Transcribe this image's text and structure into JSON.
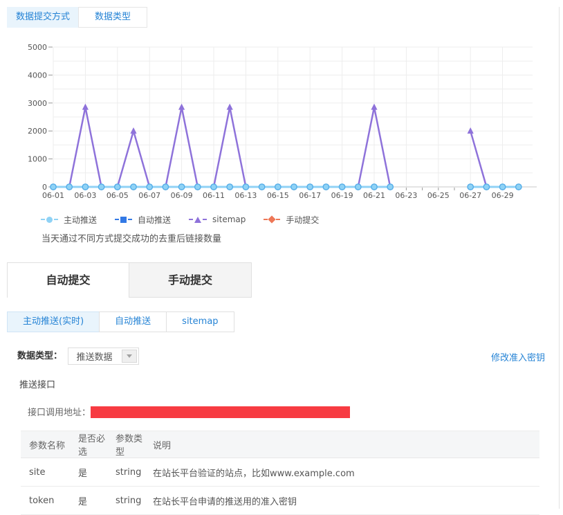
{
  "top_tabs": [
    {
      "label": "数据提交方式",
      "active": true
    },
    {
      "label": "数据类型",
      "active": false
    }
  ],
  "chart": {
    "caption": "当天通过不同方式提交成功的去重后链接数量"
  },
  "chart_data": {
    "type": "line",
    "x": [
      "06-01",
      "06-02",
      "06-03",
      "06-04",
      "06-05",
      "06-06",
      "06-07",
      "06-08",
      "06-09",
      "06-10",
      "06-11",
      "06-12",
      "06-13",
      "06-14",
      "06-15",
      "06-16",
      "06-17",
      "06-18",
      "06-19",
      "06-20",
      "06-21",
      "06-22",
      "06-23",
      "06-24",
      "06-25",
      "06-26",
      "06-27",
      "06-28",
      "06-29",
      "06-30"
    ],
    "ylim": [
      0,
      5000
    ],
    "ytick_interval": 1000,
    "grid_interval": 500,
    "x_label_every": 2,
    "grid": true,
    "legend_position": "bottom-left",
    "series": [
      {
        "name": "主动推送",
        "color": "#8FD2F5",
        "marker": "circle",
        "marker_fill": "#8FD2F5",
        "marker_stroke": "#54ADE8",
        "values": [
          0,
          0,
          0,
          0,
          0,
          0,
          0,
          0,
          0,
          0,
          0,
          0,
          0,
          0,
          0,
          0,
          0,
          0,
          0,
          0,
          0,
          0,
          null,
          null,
          null,
          null,
          0,
          0,
          0,
          0
        ]
      },
      {
        "name": "自动推送",
        "color": "#3379E5",
        "marker": "square",
        "marker_fill": "#3379E5",
        "marker_stroke": "#2a6cd4",
        "values": [
          0,
          0,
          0,
          0,
          0,
          0,
          0,
          0,
          0,
          0,
          0,
          0,
          0,
          0,
          0,
          0,
          0,
          0,
          0,
          0,
          0,
          0,
          null,
          null,
          null,
          null,
          0,
          0,
          0,
          0
        ]
      },
      {
        "name": "sitemap",
        "color": "#8E72DA",
        "marker": "triangle",
        "marker_fill": "#8E72DA",
        "marker_stroke": "#8E72DA",
        "values": [
          0,
          0,
          2850,
          0,
          0,
          2000,
          0,
          0,
          2850,
          0,
          0,
          2850,
          0,
          0,
          0,
          0,
          0,
          0,
          0,
          0,
          2850,
          0,
          null,
          null,
          null,
          null,
          2000,
          0,
          0,
          0
        ]
      },
      {
        "name": "手动提交",
        "color": "#EE7757",
        "marker": "diamond",
        "marker_fill": "#EE7757",
        "marker_stroke": "#EE7757",
        "values": [
          null,
          null,
          null,
          null,
          null,
          null,
          null,
          null,
          null,
          null,
          null,
          null,
          null,
          null,
          null,
          null,
          null,
          null,
          null,
          null,
          null,
          null,
          null,
          null,
          null,
          null,
          null,
          null,
          null,
          null
        ]
      }
    ]
  },
  "main_tabs": [
    {
      "label": "自动提交",
      "active": true
    },
    {
      "label": "手动提交",
      "active": false
    }
  ],
  "sub_tabs": [
    {
      "label": "主动推送(实时)",
      "active": true
    },
    {
      "label": "自动推送",
      "active": false
    },
    {
      "label": "sitemap",
      "active": false
    }
  ],
  "controls": {
    "data_type_label": "数据类型：",
    "data_type_value": "推送数据",
    "modify_key_link": "修改准入密钥"
  },
  "api": {
    "section_label": "推送接口",
    "address_label": "接口调用地址："
  },
  "table": {
    "headers": [
      "参数名称",
      "是否必选",
      "参数类型",
      "说明"
    ],
    "rows": [
      [
        "site",
        "是",
        "string",
        "在站长平台验证的站点，比如www.example.com"
      ],
      [
        "token",
        "是",
        "string",
        "在站长平台申请的推送用的准入密钥"
      ]
    ]
  },
  "colors": {
    "accent_blue": "#2583D5",
    "active_tab_bg": "#E9F4FC",
    "redacted_bar_red": "#F73B42",
    "grid_line": "#EDEDED"
  }
}
